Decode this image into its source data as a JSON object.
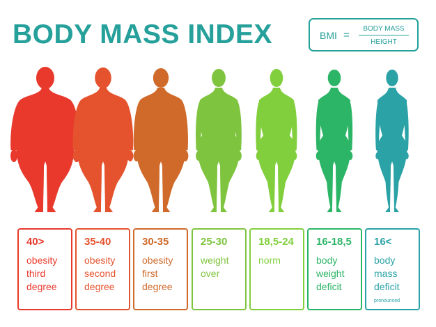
{
  "title": "BODY MASS INDEX",
  "formula": {
    "lhs": "BMI",
    "eq": "=",
    "numerator": "BODY MASS",
    "denominator": "HEIGHT"
  },
  "categories": [
    {
      "range": "40>",
      "lines": [
        "obesity",
        "third",
        "degree"
      ],
      "note": "",
      "color": "#e8392c",
      "body": "obese3"
    },
    {
      "range": "35-40",
      "lines": [
        "obesity",
        "second",
        "degree"
      ],
      "note": "",
      "color": "#e5532e",
      "body": "obese2"
    },
    {
      "range": "30-35",
      "lines": [
        "obesity",
        "first",
        "degree"
      ],
      "note": "",
      "color": "#cf6a2a",
      "body": "obese1"
    },
    {
      "range": "25-30",
      "lines": [
        "weight",
        "over"
      ],
      "note": "",
      "color": "#7fc43f",
      "body": "over"
    },
    {
      "range": "18,5-24",
      "lines": [
        "norm"
      ],
      "note": "",
      "color": "#82cf3e",
      "body": "norm"
    },
    {
      "range": "16-18,5",
      "lines": [
        "body",
        "weight",
        "deficit"
      ],
      "note": "",
      "color": "#2db567",
      "body": "thin"
    },
    {
      "range": "16<",
      "lines": [
        "body",
        "mass",
        "deficit"
      ],
      "note": "pronounced",
      "color": "#2aa2a6",
      "body": "thinnest"
    }
  ]
}
